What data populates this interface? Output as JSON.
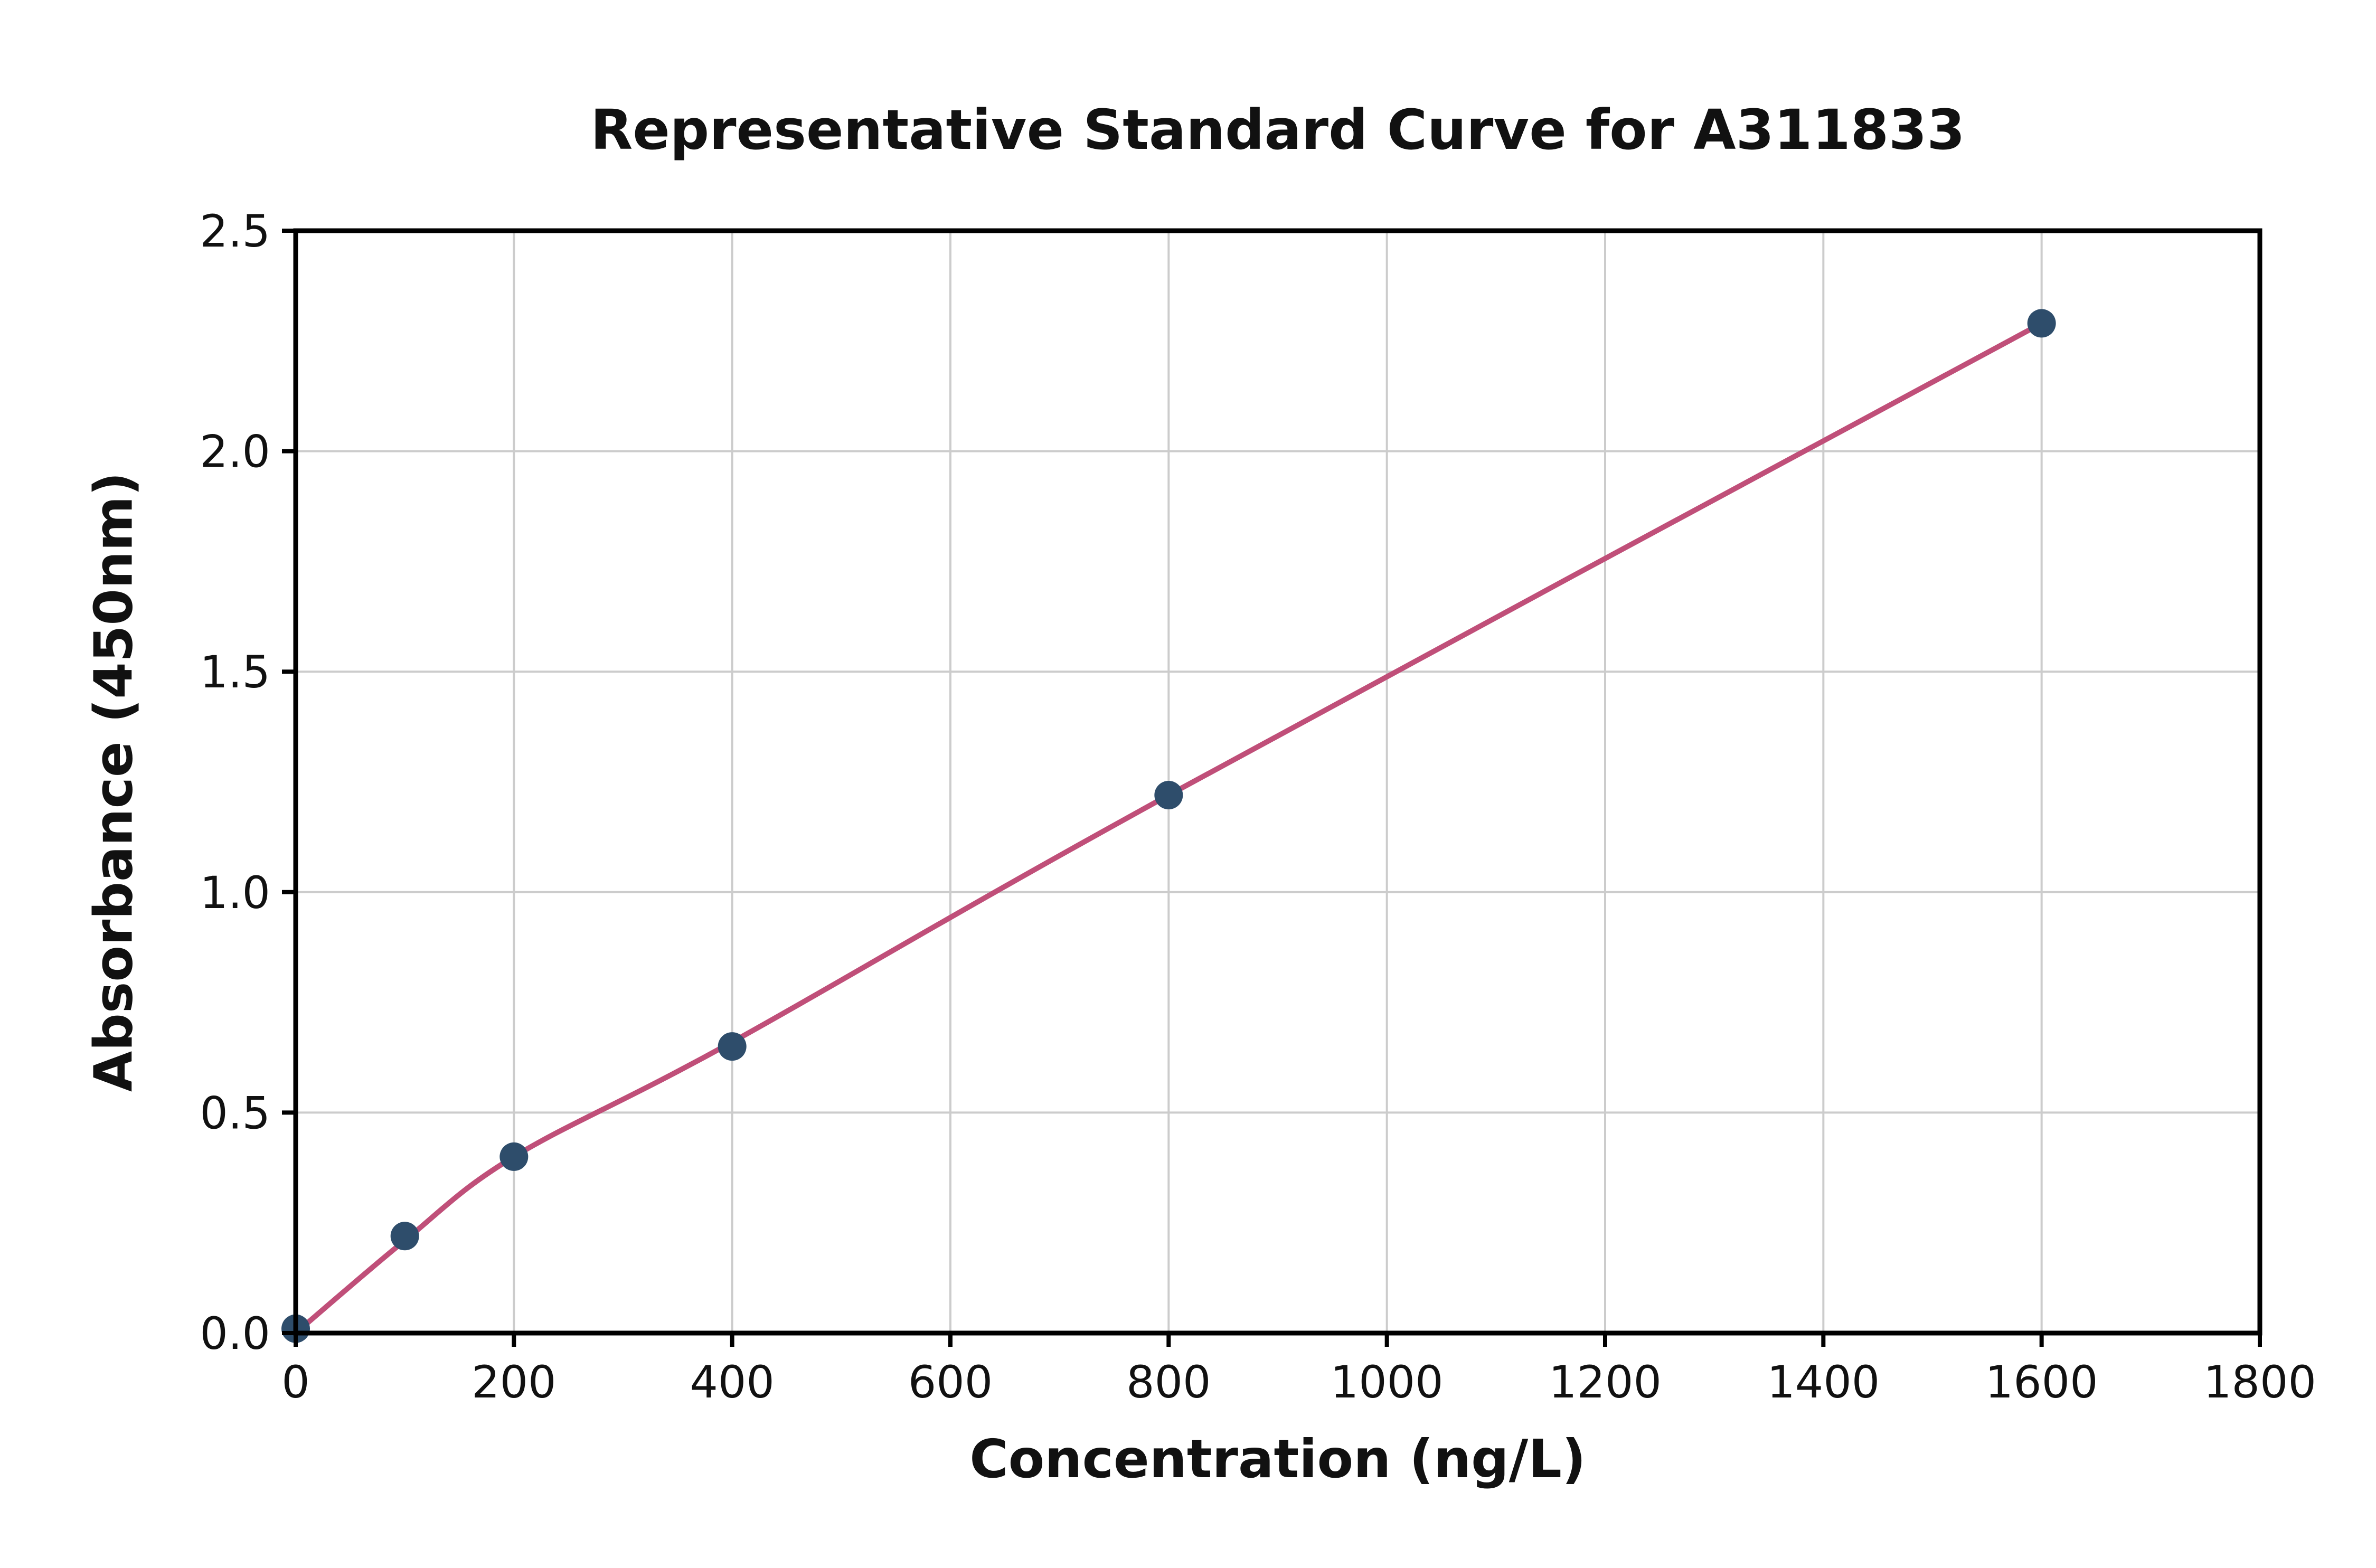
{
  "figure": {
    "background": "#ffffff"
  },
  "chart_data": {
    "type": "scatter",
    "title": "Representative Standard Curve for A311833",
    "xlabel": "Concentration (ng/L)",
    "ylabel": "Absorbance (450nm)",
    "xlim": [
      0,
      1800
    ],
    "ylim": [
      0.0,
      2.5
    ],
    "x_ticks": [
      0,
      200,
      400,
      600,
      800,
      1000,
      1200,
      1400,
      1600,
      1800
    ],
    "y_ticks": [
      0.0,
      0.5,
      1.0,
      1.5,
      2.0,
      2.5
    ],
    "grid": true,
    "legend_position": "none",
    "grid_color": "#cccccc",
    "axis_color": "#000000",
    "points": {
      "name": "standard-data-points",
      "color": "#2e4d6b",
      "x": [
        0,
        100,
        200,
        400,
        800,
        1600
      ],
      "y": [
        0.01,
        0.22,
        0.4,
        0.65,
        1.22,
        2.29
      ]
    },
    "curve": {
      "name": "fitted-standard-curve",
      "color": "#c04f79",
      "x": [
        0,
        100,
        200,
        400,
        800,
        1600
      ],
      "y": [
        0.0,
        0.21,
        0.4,
        0.66,
        1.22,
        2.29
      ]
    }
  }
}
